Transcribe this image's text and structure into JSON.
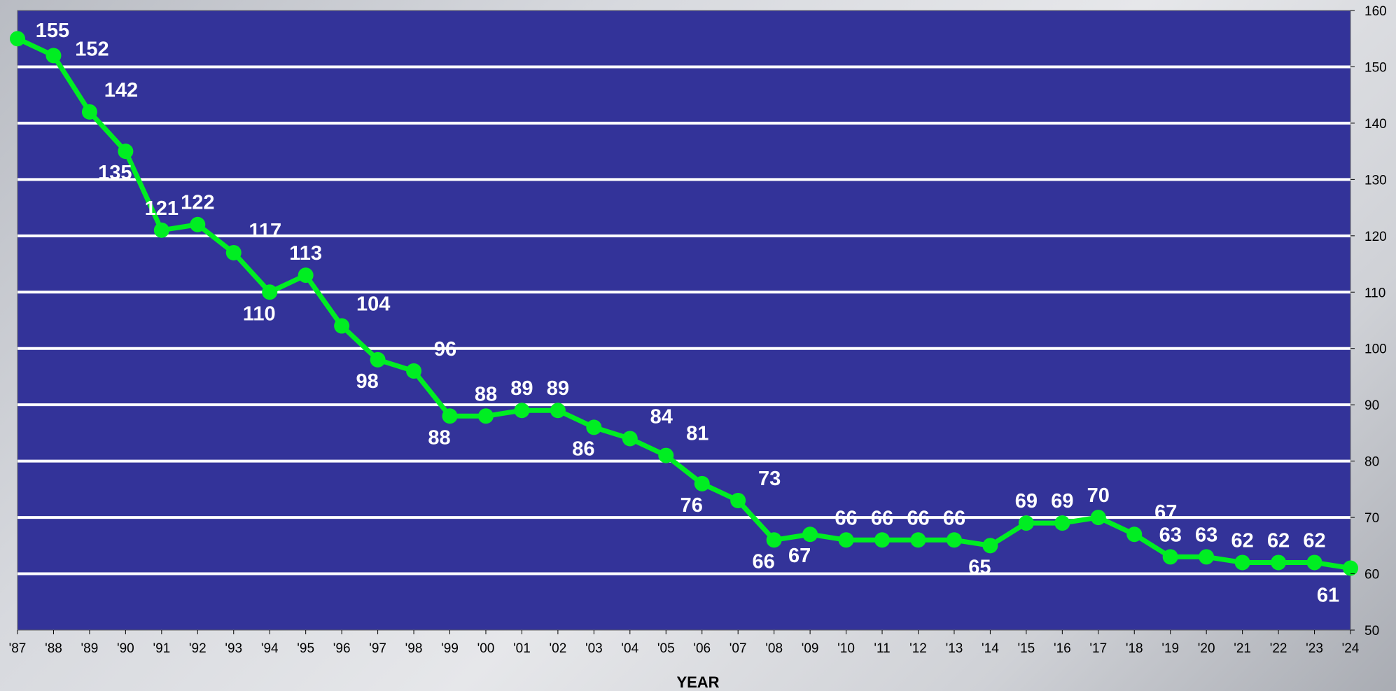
{
  "chart_data": {
    "type": "line",
    "title": "",
    "xlabel": "YEAR",
    "ylabel": "",
    "categories": [
      "'87",
      "'88",
      "'89",
      "'90",
      "'91",
      "'92",
      "'93",
      "'94",
      "'95",
      "'96",
      "'97",
      "'98",
      "'99",
      "'00",
      "'01",
      "'02",
      "'03",
      "'04",
      "'05",
      "'06",
      "'07",
      "'08",
      "'09",
      "'10",
      "'11",
      "'12",
      "'13",
      "'14",
      "'15",
      "'16",
      "'17",
      "'18",
      "'19",
      "'20",
      "'21",
      "'22",
      "'23",
      "'24"
    ],
    "series": [
      {
        "values": [
          155,
          152,
          142,
          135,
          121,
          122,
          117,
          110,
          113,
          104,
          98,
          96,
          88,
          88,
          89,
          89,
          86,
          84,
          81,
          76,
          73,
          66,
          67,
          66,
          66,
          66,
          66,
          65,
          69,
          69,
          70,
          67,
          63,
          63,
          62,
          62,
          62,
          61
        ]
      }
    ],
    "ylim": [
      50,
      160
    ],
    "yticks": [
      50,
      60,
      70,
      80,
      90,
      100,
      110,
      120,
      130,
      140,
      150,
      160
    ],
    "y_axis_side": "right",
    "grid": true,
    "legend": "none",
    "data_labels": true,
    "colors": {
      "plot_background": "#333399",
      "line": "#00ee22",
      "gridlines": "#ffffff",
      "data_labels": "#ffffff"
    }
  }
}
